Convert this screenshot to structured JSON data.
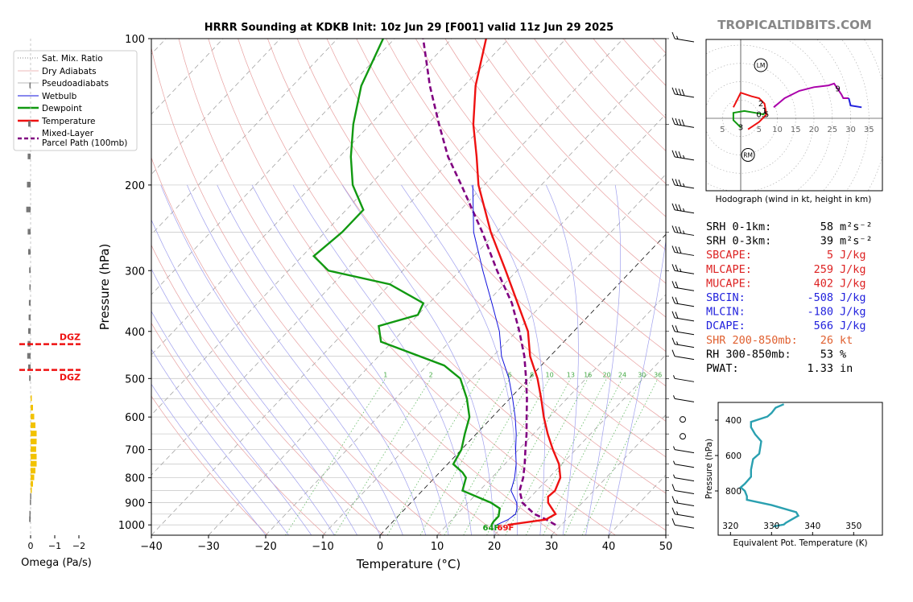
{
  "title": "HRRR Sounding at KDKB Init: 10z Jun 29 [F001] valid 11z Jun 29 2025",
  "watermark": "TROPICALTIDBITS.COM",
  "colors": {
    "temperature": "#ee1111",
    "dewpoint": "#119911",
    "wetbulb": "#1111dd",
    "parcel": "#800080",
    "dry_adiabat": "#e8a0a0",
    "moist_adiabat": "#a0a0ee",
    "mixing_ratio": "#66bb66",
    "isotherm": "#999999",
    "omega": "#f2c200",
    "theta_e": "#2aa0b0",
    "red_text": "#dd2222",
    "blue_text": "#2222dd",
    "orange_text": "#e06030"
  },
  "legend": {
    "items": [
      {
        "label": "Sat. Mix. Ratio",
        "style": "dotted",
        "color": "#888888"
      },
      {
        "label": "Dry Adiabats",
        "style": "solid-thin",
        "color": "#e8a0a0"
      },
      {
        "label": "Pseudoadiabats",
        "style": "solid-thin",
        "color": "#a0a0a0"
      },
      {
        "label": "Wetbulb",
        "style": "solid",
        "color": "#1111dd"
      },
      {
        "label": "Dewpoint",
        "style": "solid-thick",
        "color": "#119911"
      },
      {
        "label": "Temperature",
        "style": "solid-thick",
        "color": "#ee1111"
      },
      {
        "label": "Mixed-Layer",
        "label2": "Parcel Path (100mb)",
        "style": "dashed",
        "color": "#800080"
      }
    ]
  },
  "chart_data": {
    "type": "skew-t",
    "xlabel": "Temperature (°C)",
    "ylabel": "Pressure (hPa)",
    "xlim": [
      -40,
      50
    ],
    "ylim": [
      1050,
      100
    ],
    "xticks": [
      -40,
      -30,
      -20,
      -10,
      0,
      10,
      20,
      30,
      40,
      50
    ],
    "yticks": [
      100,
      200,
      300,
      400,
      500,
      600,
      700,
      800,
      900,
      1000
    ],
    "mixing_ratio_labels": [
      "1",
      "2",
      "6",
      "8",
      "10",
      "13",
      "16",
      "20",
      "24",
      "30",
      "36"
    ],
    "surface_dewpoint_label": "64F",
    "surface_temperature_label": "69F",
    "temperature": [
      {
        "p": 1000,
        "t": 20.6
      },
      {
        "p": 975,
        "t": 26.4
      },
      {
        "p": 950,
        "t": 27.2
      },
      {
        "p": 925,
        "t": 25.6
      },
      {
        "p": 900,
        "t": 24.0
      },
      {
        "p": 875,
        "t": 23.0
      },
      {
        "p": 850,
        "t": 23.2
      },
      {
        "p": 800,
        "t": 22.0
      },
      {
        "p": 750,
        "t": 19.5
      },
      {
        "p": 700,
        "t": 16.0
      },
      {
        "p": 650,
        "t": 12.5
      },
      {
        "p": 600,
        "t": 9.0
      },
      {
        "p": 550,
        "t": 5.5
      },
      {
        "p": 500,
        "t": 1.5
      },
      {
        "p": 450,
        "t": -3.5
      },
      {
        "p": 400,
        "t": -8.0
      },
      {
        "p": 350,
        "t": -14.5
      },
      {
        "p": 300,
        "t": -22.0
      },
      {
        "p": 250,
        "t": -31.0
      },
      {
        "p": 200,
        "t": -41.0
      },
      {
        "p": 175,
        "t": -46.0
      },
      {
        "p": 150,
        "t": -52.0
      },
      {
        "p": 125,
        "t": -58.0
      },
      {
        "p": 100,
        "t": -64.0
      }
    ],
    "dewpoint": [
      {
        "p": 1000,
        "t": 17.8
      },
      {
        "p": 985,
        "t": 17.6
      },
      {
        "p": 960,
        "t": 17.6
      },
      {
        "p": 925,
        "t": 16.5
      },
      {
        "p": 900,
        "t": 14.0
      },
      {
        "p": 850,
        "t": 7.0
      },
      {
        "p": 800,
        "t": 5.5
      },
      {
        "p": 780,
        "t": 4.0
      },
      {
        "p": 750,
        "t": 1.0
      },
      {
        "p": 700,
        "t": 0.0
      },
      {
        "p": 650,
        "t": -2.0
      },
      {
        "p": 600,
        "t": -4.0
      },
      {
        "p": 550,
        "t": -7.5
      },
      {
        "p": 500,
        "t": -12.0
      },
      {
        "p": 470,
        "t": -17.0
      },
      {
        "p": 420,
        "t": -32.0
      },
      {
        "p": 390,
        "t": -35.0
      },
      {
        "p": 370,
        "t": -30.0
      },
      {
        "p": 350,
        "t": -31.0
      },
      {
        "p": 320,
        "t": -40.0
      },
      {
        "p": 300,
        "t": -53.0
      },
      {
        "p": 280,
        "t": -58.0
      },
      {
        "p": 250,
        "t": -57.0
      },
      {
        "p": 225,
        "t": -57.0
      },
      {
        "p": 200,
        "t": -63.0
      },
      {
        "p": 175,
        "t": -68.0
      },
      {
        "p": 150,
        "t": -73.0
      },
      {
        "p": 125,
        "t": -78.0
      },
      {
        "p": 100,
        "t": -82.0
      }
    ],
    "wetbulb": [
      {
        "p": 1000,
        "t": 18.7
      },
      {
        "p": 975,
        "t": 19.8
      },
      {
        "p": 950,
        "t": 20.2
      },
      {
        "p": 925,
        "t": 19.5
      },
      {
        "p": 900,
        "t": 18.5
      },
      {
        "p": 850,
        "t": 15.5
      },
      {
        "p": 800,
        "t": 14.0
      },
      {
        "p": 750,
        "t": 12.0
      },
      {
        "p": 700,
        "t": 9.5
      },
      {
        "p": 650,
        "t": 7.0
      },
      {
        "p": 600,
        "t": 4.0
      },
      {
        "p": 550,
        "t": 0.5
      },
      {
        "p": 500,
        "t": -3.5
      },
      {
        "p": 450,
        "t": -8.5
      },
      {
        "p": 400,
        "t": -13.0
      },
      {
        "p": 350,
        "t": -19.0
      },
      {
        "p": 300,
        "t": -26.0
      },
      {
        "p": 250,
        "t": -34.0
      },
      {
        "p": 200,
        "t": -42.0
      }
    ],
    "parcel": [
      {
        "p": 1000,
        "t": 29.0
      },
      {
        "p": 975,
        "t": 26.5
      },
      {
        "p": 950,
        "t": 23.5
      },
      {
        "p": 925,
        "t": 21.5
      },
      {
        "p": 900,
        "t": 19.5
      },
      {
        "p": 850,
        "t": 17.0
      },
      {
        "p": 800,
        "t": 15.5
      },
      {
        "p": 750,
        "t": 13.5
      },
      {
        "p": 700,
        "t": 11.2
      },
      {
        "p": 650,
        "t": 8.8
      },
      {
        "p": 600,
        "t": 6.0
      },
      {
        "p": 550,
        "t": 3.0
      },
      {
        "p": 500,
        "t": -0.5
      },
      {
        "p": 450,
        "t": -4.5
      },
      {
        "p": 400,
        "t": -9.5
      },
      {
        "p": 350,
        "t": -15.5
      },
      {
        "p": 300,
        "t": -23.5
      },
      {
        "p": 250,
        "t": -32.5
      },
      {
        "p": 200,
        "t": -44.0
      },
      {
        "p": 175,
        "t": -51.0
      },
      {
        "p": 150,
        "t": -58.0
      },
      {
        "p": 125,
        "t": -66.0
      },
      {
        "p": 100,
        "t": -75.0
      }
    ],
    "wind_barbs": [
      {
        "p": 100,
        "kt": 15
      },
      {
        "p": 130,
        "kt": 40
      },
      {
        "p": 150,
        "kt": 40
      },
      {
        "p": 175,
        "kt": 35
      },
      {
        "p": 200,
        "kt": 35
      },
      {
        "p": 225,
        "kt": 35
      },
      {
        "p": 250,
        "kt": 35
      },
      {
        "p": 275,
        "kt": 30
      },
      {
        "p": 300,
        "kt": 25
      },
      {
        "p": 325,
        "kt": 20
      },
      {
        "p": 350,
        "kt": 20
      },
      {
        "p": 375,
        "kt": 20
      },
      {
        "p": 400,
        "kt": 20
      },
      {
        "p": 425,
        "kt": 15
      },
      {
        "p": 450,
        "kt": 10
      },
      {
        "p": 500,
        "kt": 5
      },
      {
        "p": 550,
        "kt": 5
      },
      {
        "p": 700,
        "kt": 5
      },
      {
        "p": 750,
        "kt": 5
      },
      {
        "p": 800,
        "kt": 5
      },
      {
        "p": 850,
        "kt": 10
      },
      {
        "p": 900,
        "kt": 15
      },
      {
        "p": 950,
        "kt": 15
      },
      {
        "p": 1000,
        "kt": 10
      }
    ],
    "calm_circles": [
      600,
      650
    ]
  },
  "omega": {
    "xlabel": "Omega (Pa/s)",
    "xticks": [
      "0",
      "−1",
      "−2"
    ],
    "dgz_label": "DGZ",
    "dgz_top_hpa": 425,
    "dgz_bottom_hpa": 480,
    "bars": [
      {
        "p": 125,
        "v": 0.05
      },
      {
        "p": 150,
        "v": 0.1
      },
      {
        "p": 175,
        "v": 0.12
      },
      {
        "p": 200,
        "v": 0.15
      },
      {
        "p": 225,
        "v": 0.18
      },
      {
        "p": 250,
        "v": 0.12
      },
      {
        "p": 275,
        "v": 0.1
      },
      {
        "p": 300,
        "v": 0.06
      },
      {
        "p": 325,
        "v": 0.05
      },
      {
        "p": 350,
        "v": 0.07
      },
      {
        "p": 375,
        "v": 0.08
      },
      {
        "p": 400,
        "v": 0.1
      },
      {
        "p": 425,
        "v": 0.12
      },
      {
        "p": 450,
        "v": 0.14
      },
      {
        "p": 475,
        "v": 0.1
      },
      {
        "p": 500,
        "v": 0.06
      },
      {
        "p": 550,
        "v": -0.03
      },
      {
        "p": 575,
        "v": -0.1
      },
      {
        "p": 600,
        "v": -0.15
      },
      {
        "p": 625,
        "v": -0.2
      },
      {
        "p": 650,
        "v": -0.25
      },
      {
        "p": 675,
        "v": -0.25
      },
      {
        "p": 700,
        "v": -0.23
      },
      {
        "p": 725,
        "v": -0.25
      },
      {
        "p": 750,
        "v": -0.25
      },
      {
        "p": 775,
        "v": -0.2
      },
      {
        "p": 800,
        "v": -0.15
      },
      {
        "p": 825,
        "v": -0.1
      },
      {
        "p": 850,
        "v": -0.05
      },
      {
        "p": 875,
        "v": 0.02
      },
      {
        "p": 900,
        "v": 0.03
      },
      {
        "p": 950,
        "v": 0.05
      },
      {
        "p": 975,
        "v": 0.06
      }
    ]
  },
  "hodograph": {
    "caption": "Hodograph (wind in kt, height in km)",
    "ring_labels": [
      "5",
      "5",
      "10",
      "15",
      "20",
      "25",
      "30",
      "35"
    ],
    "lm_label": "LM",
    "rm_label": "RM",
    "lm": {
      "u": 5.5,
      "v": 14.5
    },
    "rm": {
      "u": 2,
      "v": -10
    },
    "segments": [
      {
        "color": "#ee1111",
        "points": [
          [
            2,
            -3
          ],
          [
            5,
            -1
          ],
          [
            7,
            1
          ],
          [
            6.5,
            4
          ],
          [
            5,
            5.5
          ],
          [
            3,
            6
          ],
          [
            0,
            7
          ],
          [
            -1,
            5
          ],
          [
            -2,
            3
          ]
        ]
      },
      {
        "color": "#119911",
        "points": [
          [
            6.5,
            1
          ],
          [
            4,
            1.5
          ],
          [
            1,
            2
          ],
          [
            -2,
            1.5
          ],
          [
            -2,
            -0.5
          ],
          [
            -1,
            -1.5
          ],
          [
            0,
            -2.5
          ]
        ]
      },
      {
        "color": "#aa00aa",
        "points": [
          [
            9,
            3
          ],
          [
            12,
            5.5
          ],
          [
            16,
            7.5
          ],
          [
            20,
            8.5
          ],
          [
            24,
            9
          ],
          [
            25.5,
            9.5
          ],
          [
            26.5,
            8
          ],
          [
            27.5,
            6.5
          ],
          [
            28,
            5.5
          ],
          [
            29.5,
            5.5
          ]
        ]
      },
      {
        "color": "#2222dd",
        "points": [
          [
            29.5,
            5.5
          ],
          [
            30,
            3.5
          ],
          [
            33,
            3
          ]
        ]
      }
    ],
    "height_labels": [
      {
        "text": "2",
        "u": 5.5,
        "v": 4
      },
      {
        "text": "1",
        "u": 6.5,
        "v": 2
      },
      {
        "text": "0.5",
        "u": 6,
        "v": 1
      },
      {
        "text": "3",
        "u": 0,
        "v": -2.5
      },
      {
        "text": "9",
        "u": 26.5,
        "v": 8
      }
    ]
  },
  "stats": [
    {
      "label": "SRH 0-1km:",
      "value": "58",
      "unit": "m²s⁻²",
      "color": "#000000"
    },
    {
      "label": "SRH 0-3km:",
      "value": "39",
      "unit": "m²s⁻²",
      "color": "#000000"
    },
    {
      "label": "SBCAPE:",
      "value": "5",
      "unit": "J/kg",
      "color": "#dd2222"
    },
    {
      "label": "MLCAPE:",
      "value": "259",
      "unit": "J/kg",
      "color": "#dd2222"
    },
    {
      "label": "MUCAPE:",
      "value": "402",
      "unit": "J/kg",
      "color": "#dd2222"
    },
    {
      "label": "SBCIN:",
      "value": "-508",
      "unit": "J/kg",
      "color": "#2222dd"
    },
    {
      "label": "MLCIN:",
      "value": "-180",
      "unit": "J/kg",
      "color": "#2222dd"
    },
    {
      "label": "DCAPE:",
      "value": "566",
      "unit": "J/kg",
      "color": "#2222dd"
    },
    {
      "label": "SHR 200-850mb:",
      "value": "26",
      "unit": "kt",
      "color": "#e06030"
    },
    {
      "label": "RH 300-850mb:",
      "value": "53",
      "unit": "%",
      "color": "#000000"
    },
    {
      "label": "PWAT:",
      "value": "1.33",
      "unit": "in",
      "color": "#000000"
    }
  ],
  "theta_e": {
    "xlabel": "Equivalent Pot. Temperature (K)",
    "ylabel": "Pressure (hPa)",
    "xticks": [
      320,
      330,
      340,
      350
    ],
    "yticks": [
      400,
      600,
      800
    ],
    "xlim": [
      317,
      357
    ],
    "ylim": [
      1050,
      300
    ],
    "profile": [
      {
        "p": 1000,
        "th": 330.5
      },
      {
        "p": 990,
        "th": 333
      },
      {
        "p": 980,
        "th": 333.5
      },
      {
        "p": 960,
        "th": 335
      },
      {
        "p": 940,
        "th": 336.5
      },
      {
        "p": 920,
        "th": 336
      },
      {
        "p": 880,
        "th": 330
      },
      {
        "p": 850,
        "th": 324
      },
      {
        "p": 830,
        "th": 324
      },
      {
        "p": 800,
        "th": 323.5
      },
      {
        "p": 780,
        "th": 322.5
      },
      {
        "p": 760,
        "th": 323.5
      },
      {
        "p": 720,
        "th": 325
      },
      {
        "p": 680,
        "th": 325
      },
      {
        "p": 620,
        "th": 325.5
      },
      {
        "p": 590,
        "th": 327
      },
      {
        "p": 520,
        "th": 327.5
      },
      {
        "p": 480,
        "th": 326
      },
      {
        "p": 440,
        "th": 325
      },
      {
        "p": 410,
        "th": 325
      },
      {
        "p": 380,
        "th": 329
      },
      {
        "p": 360,
        "th": 330
      },
      {
        "p": 330,
        "th": 331
      },
      {
        "p": 310,
        "th": 333
      }
    ]
  }
}
